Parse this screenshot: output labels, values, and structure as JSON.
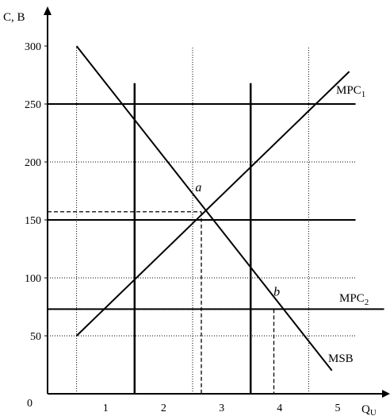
{
  "chart_data": {
    "type": "line",
    "xlabel": "Q",
    "xlabel_sub": "U",
    "ylabel": "C, B",
    "xlim": [
      0,
      5.8
    ],
    "ylim": [
      0,
      325
    ],
    "origin_label": "0",
    "x_ticks": [
      {
        "value": 1,
        "label": "1"
      },
      {
        "value": 2,
        "label": "2"
      },
      {
        "value": 3,
        "label": "3"
      },
      {
        "value": 4,
        "label": "4"
      },
      {
        "value": 5,
        "label": "5"
      }
    ],
    "y_ticks": [
      {
        "value": 50,
        "label": "50"
      },
      {
        "value": 100,
        "label": "100"
      },
      {
        "value": 150,
        "label": "150"
      },
      {
        "value": 200,
        "label": "200"
      },
      {
        "value": 250,
        "label": "250"
      },
      {
        "value": 300,
        "label": "300"
      }
    ],
    "grid": {
      "dotted_x": [
        0.5,
        2.5,
        4.5
      ],
      "solid_x": [
        1.5,
        3.5
      ],
      "dotted_y": [
        50,
        100,
        200
      ],
      "solid_y": [
        150,
        250
      ]
    },
    "series": [
      {
        "name": "MSB",
        "name_sub": "",
        "x": [
          0.5,
          4.9
        ],
        "y": [
          300,
          20
        ]
      },
      {
        "name": "MPC",
        "name_sub": "1",
        "x": [
          0.5,
          5.2
        ],
        "y": [
          50,
          278
        ]
      },
      {
        "name": "MPC",
        "name_sub": "2",
        "x": [
          0,
          5.8
        ],
        "y": [
          73,
          73
        ]
      }
    ],
    "annotations": [
      {
        "label": "a",
        "x": 2.65,
        "y": 157,
        "label_x": 2.6,
        "label_y": 172
      },
      {
        "label": "b",
        "x": 3.9,
        "y": 73,
        "label_x": 3.95,
        "label_y": 82
      }
    ]
  }
}
